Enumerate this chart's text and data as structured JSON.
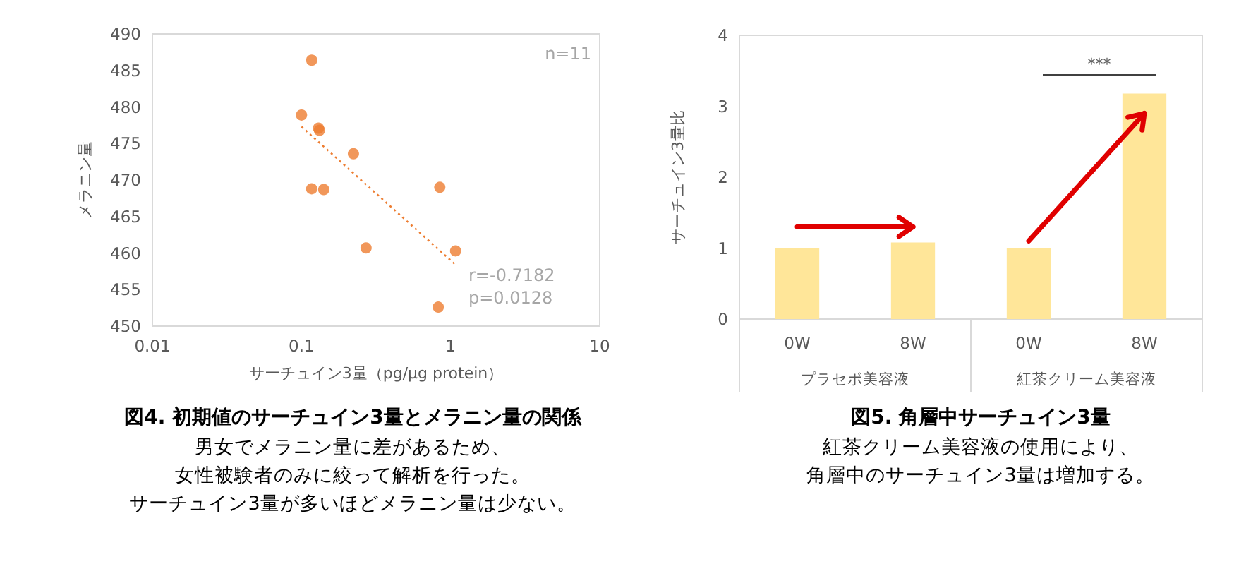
{
  "chart_data": [
    {
      "type": "scatter",
      "title": "図4. 初期値のサーチュイン3量とメラニン量の関係",
      "subtitle": "男女でメラニン量に差があるため、女性被験者のみに絞って解析を行った。サーチュイン3量が多いほどメラニン量は少ない。",
      "xlabel": "サーチュイン3量（pg/μg protein）",
      "ylabel": "メラニン量",
      "log": "x",
      "xlim": [
        0.01,
        10
      ],
      "xticks": [
        0.01,
        0.1,
        1,
        10
      ],
      "ylim": [
        450,
        490
      ],
      "yticks": [
        450,
        455,
        460,
        465,
        470,
        475,
        480,
        485,
        490
      ],
      "grid": false,
      "marker": "circle",
      "series": [
        {
          "color": "#ed7d31",
          "x": [
            0.1,
            0.117,
            0.13,
            0.132,
            0.223,
            0.117,
            0.141,
            0.271,
            0.846,
            1.08,
            0.827
          ],
          "values": [
            478.9,
            486.4,
            477.1,
            476.8,
            473.6,
            468.8,
            468.7,
            460.7,
            469.0,
            460.3,
            452.6
          ]
        },
        {
          "type": "line",
          "color": "#ed7d31",
          "line_style": "dotted",
          "marker": "none",
          "x": [
            0.1,
            1.08
          ],
          "values": [
            477.3,
            458.4
          ]
        }
      ],
      "annotations": [
        "n=11",
        "r=-0.7182",
        "p=0.0128"
      ]
    },
    {
      "type": "bar",
      "title": "図5. 角層中サーチュイン3量",
      "subtitle": "紅茶クリーム美容液の使用により、角層中のサーチュイン3量は増加する。",
      "ylabel": "サーチュイン3量比",
      "categories": [
        "0W",
        "8W",
        "0W",
        "8W"
      ],
      "values": [
        1,
        1.08,
        1,
        3.18
      ],
      "color": "#ffe699",
      "ylim": [
        0,
        4
      ],
      "yticks": [
        0,
        1,
        2,
        3,
        4
      ],
      "grid": false,
      "annotations": [
        "***",
        "プラセボ美容液",
        "紅茶クリーム美容液"
      ]
    }
  ]
}
